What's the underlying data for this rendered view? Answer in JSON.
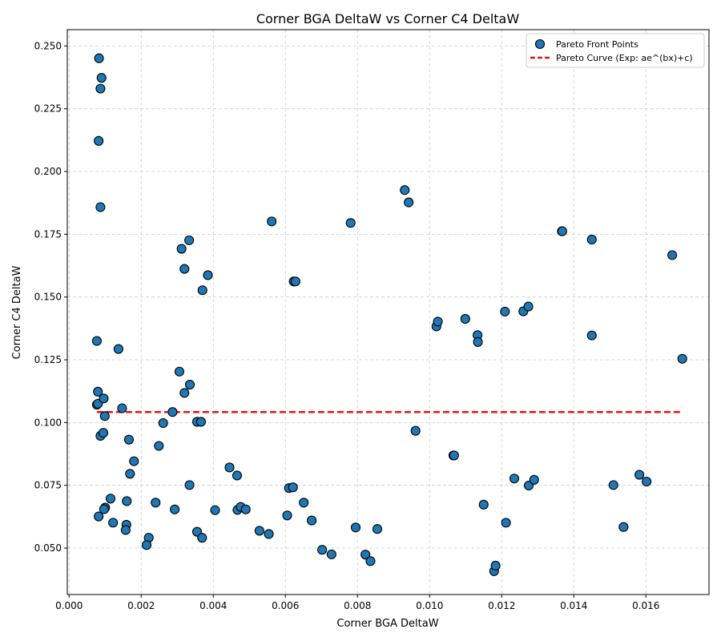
{
  "chart_data": {
    "type": "scatter",
    "title": "Corner BGA DeltaW vs Corner C4 DeltaW",
    "xlabel": "Corner BGA DeltaW",
    "ylabel": "Corner C4 DeltaW",
    "xlim": [
      -5e-05,
      0.01775
    ],
    "ylim": [
      0.0315,
      0.2565
    ],
    "xticks": [
      "0.000",
      "0.002",
      "0.004",
      "0.006",
      "0.008",
      "0.010",
      "0.012",
      "0.014",
      "0.016"
    ],
    "xtick_values": [
      0.0,
      0.002,
      0.004,
      0.006,
      0.008,
      0.01,
      0.012,
      0.014,
      0.016
    ],
    "yticks": [
      "0.050",
      "0.075",
      "0.100",
      "0.125",
      "0.150",
      "0.175",
      "0.200",
      "0.225",
      "0.250"
    ],
    "ytick_values": [
      0.05,
      0.075,
      0.1,
      0.125,
      0.15,
      0.175,
      0.2,
      0.225,
      0.25
    ],
    "grid": true,
    "legend_position": "top-right",
    "series": [
      {
        "name": "Pareto Front Points",
        "kind": "scatter",
        "color": "#1f77b4",
        "points": [
          [
            0.00083,
            0.2451
          ],
          [
            0.0009,
            0.2373
          ],
          [
            0.00087,
            0.233
          ],
          [
            0.00082,
            0.2122
          ],
          [
            0.00087,
            0.1858
          ],
          [
            0.00077,
            0.1325
          ],
          [
            0.0008,
            0.1123
          ],
          [
            0.00077,
            0.1071
          ],
          [
            0.0008,
            0.1075
          ],
          [
            0.00096,
            0.1096
          ],
          [
            0.00099,
            0.1026
          ],
          [
            0.00087,
            0.0947
          ],
          [
            0.00095,
            0.0959
          ],
          [
            0.001,
            0.0661
          ],
          [
            0.00097,
            0.0655
          ],
          [
            0.00082,
            0.0626
          ],
          [
            0.00137,
            0.1293
          ],
          [
            0.00147,
            0.1057
          ],
          [
            0.00166,
            0.0932
          ],
          [
            0.0018,
            0.0846
          ],
          [
            0.00169,
            0.0796
          ],
          [
            0.00115,
            0.0697
          ],
          [
            0.0016,
            0.0687
          ],
          [
            0.00122,
            0.0601
          ],
          [
            0.00159,
            0.0593
          ],
          [
            0.00157,
            0.0572
          ],
          [
            0.00221,
            0.0541
          ],
          [
            0.00215,
            0.0512
          ],
          [
            0.0024,
            0.0681
          ],
          [
            0.00249,
            0.0907
          ],
          [
            0.00261,
            0.0998
          ],
          [
            0.00287,
            0.1042
          ],
          [
            0.00293,
            0.0654
          ],
          [
            0.00306,
            0.1203
          ],
          [
            0.00312,
            0.1692
          ],
          [
            0.0032,
            0.1612
          ],
          [
            0.00333,
            0.1726
          ],
          [
            0.0032,
            0.1118
          ],
          [
            0.00335,
            0.1151
          ],
          [
            0.00334,
            0.0751
          ],
          [
            0.00355,
            0.1003
          ],
          [
            0.00366,
            0.1003
          ],
          [
            0.00385,
            0.1587
          ],
          [
            0.0037,
            0.1527
          ],
          [
            0.00355,
            0.0565
          ],
          [
            0.00369,
            0.0541
          ],
          [
            0.00405,
            0.0651
          ],
          [
            0.00445,
            0.0821
          ],
          [
            0.00466,
            0.0789
          ],
          [
            0.00467,
            0.0652
          ],
          [
            0.00476,
            0.0664
          ],
          [
            0.0049,
            0.0654
          ],
          [
            0.00528,
            0.0569
          ],
          [
            0.00554,
            0.0556
          ],
          [
            0.00562,
            0.1801
          ],
          [
            0.00605,
            0.063
          ],
          [
            0.0061,
            0.0739
          ],
          [
            0.00621,
            0.0742
          ],
          [
            0.00623,
            0.1562
          ],
          [
            0.00628,
            0.1562
          ],
          [
            0.00651,
            0.0681
          ],
          [
            0.00673,
            0.061
          ],
          [
            0.00702,
            0.0493
          ],
          [
            0.00728,
            0.0475
          ],
          [
            0.00781,
            0.1795
          ],
          [
            0.00795,
            0.0582
          ],
          [
            0.00822,
            0.0474
          ],
          [
            0.00836,
            0.0448
          ],
          [
            0.00855,
            0.0576
          ],
          [
            0.00931,
            0.1926
          ],
          [
            0.00942,
            0.1877
          ],
          [
            0.00961,
            0.0967
          ],
          [
            0.01019,
            0.1383
          ],
          [
            0.01023,
            0.1402
          ],
          [
            0.01066,
            0.0869
          ],
          [
            0.01068,
            0.0869
          ],
          [
            0.01099,
            0.1413
          ],
          [
            0.01133,
            0.1348
          ],
          [
            0.01134,
            0.1321
          ],
          [
            0.0115,
            0.0673
          ],
          [
            0.01179,
            0.0408
          ],
          [
            0.01183,
            0.043
          ],
          [
            0.01209,
            0.1442
          ],
          [
            0.01212,
            0.0601
          ],
          [
            0.01235,
            0.0777
          ],
          [
            0.0126,
            0.1443
          ],
          [
            0.01274,
            0.1462
          ],
          [
            0.01275,
            0.0749
          ],
          [
            0.0129,
            0.0772
          ],
          [
            0.01367,
            0.1762
          ],
          [
            0.01368,
            0.1762
          ],
          [
            0.0145,
            0.1729
          ],
          [
            0.0145,
            0.1347
          ],
          [
            0.0151,
            0.0751
          ],
          [
            0.01538,
            0.0584
          ],
          [
            0.01582,
            0.0792
          ],
          [
            0.01602,
            0.0765
          ],
          [
            0.01673,
            0.1667
          ],
          [
            0.01701,
            0.1254
          ]
        ]
      },
      {
        "name": "Pareto Curve (Exp: ae^(bx)+c)",
        "kind": "line",
        "color": "#ee1111",
        "linestyle": "dashed",
        "x": [
          0.00077,
          0.01701
        ],
        "y": [
          0.1042,
          0.1042
        ]
      }
    ]
  }
}
